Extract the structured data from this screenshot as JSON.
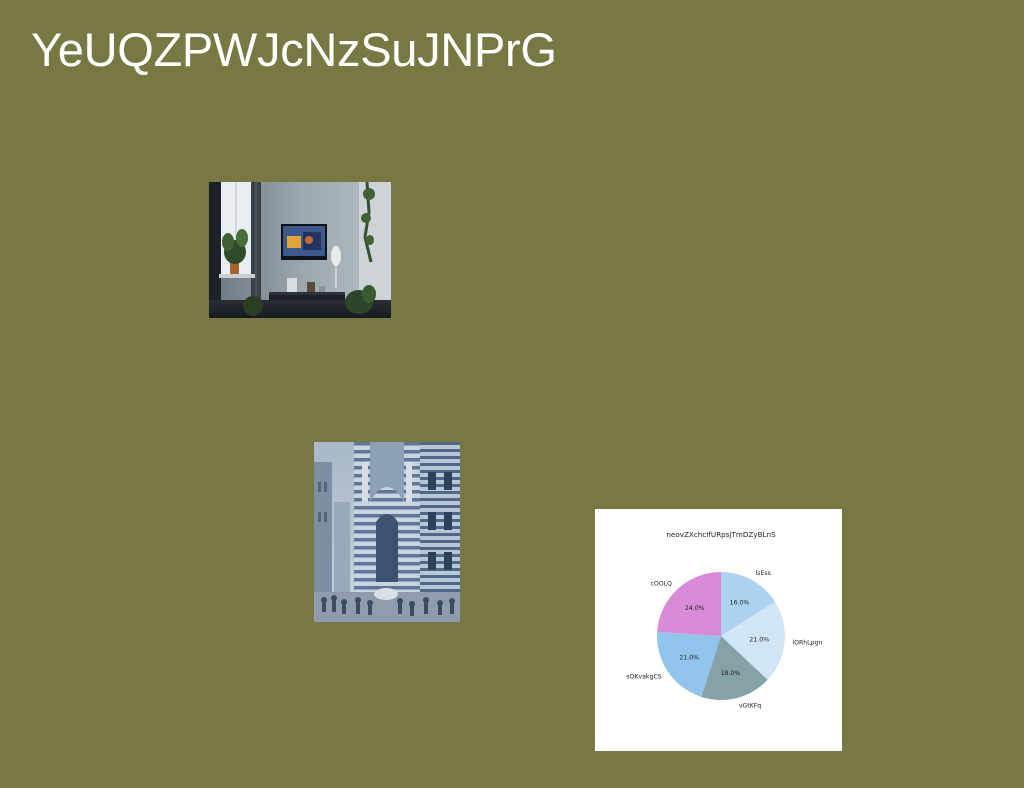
{
  "page": {
    "title": "YeUQZPWJcNzSuJNPrG",
    "background_color": "#787843"
  },
  "images": [
    {
      "name": "living-room-photo",
      "description_icon": "photo-icon"
    },
    {
      "name": "cathedral-street-photo",
      "description_icon": "photo-icon"
    }
  ],
  "chart_data": {
    "type": "pie",
    "title": "neovZXchcIfURpsjTmDZyBLnS",
    "start_angle": 90,
    "direction": "clockwise",
    "slices": [
      {
        "label": "lsEss",
        "value": 16.0,
        "pct_label": "16.0%",
        "color": "#aed3f2"
      },
      {
        "label": "lORhLpgn",
        "value": 21.0,
        "pct_label": "21.0%",
        "color": "#d2e5f7"
      },
      {
        "label": "vGtKFq",
        "value": 18.0,
        "pct_label": "18.0%",
        "color": "#85a2a8"
      },
      {
        "label": "sOKvakgCS",
        "value": 21.0,
        "pct_label": "21.0%",
        "color": "#92c5ec"
      },
      {
        "label": "cOOLQ",
        "value": 24.0,
        "pct_label": "24.0%",
        "color": "#da8bd8"
      }
    ]
  }
}
